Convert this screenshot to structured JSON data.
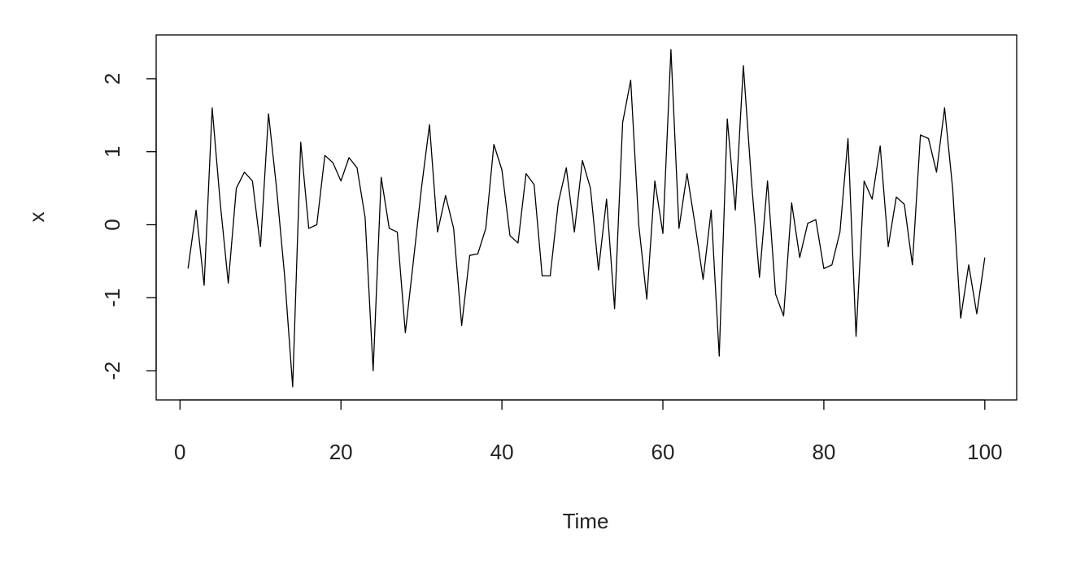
{
  "chart_data": {
    "type": "line",
    "x_label": "Time",
    "y_label": "x",
    "x": [
      1,
      2,
      3,
      4,
      5,
      6,
      7,
      8,
      9,
      10,
      11,
      12,
      13,
      14,
      15,
      16,
      17,
      18,
      19,
      20,
      21,
      22,
      23,
      24,
      25,
      26,
      27,
      28,
      29,
      30,
      31,
      32,
      33,
      34,
      35,
      36,
      37,
      38,
      39,
      40,
      41,
      42,
      43,
      44,
      45,
      46,
      47,
      48,
      49,
      50,
      51,
      52,
      53,
      54,
      55,
      56,
      57,
      58,
      59,
      60,
      61,
      62,
      63,
      64,
      65,
      66,
      67,
      68,
      69,
      70,
      71,
      72,
      73,
      74,
      75,
      76,
      77,
      78,
      79,
      80,
      81,
      82,
      83,
      84,
      85,
      86,
      87,
      88,
      89,
      90,
      91,
      92,
      93,
      94,
      95,
      96,
      97,
      98,
      99,
      100
    ],
    "series": [
      {
        "color": "#000000",
        "values": [
          -0.6,
          0.2,
          -0.83,
          1.6,
          0.3,
          -0.8,
          0.5,
          0.72,
          0.6,
          -0.3,
          1.52,
          0.5,
          -0.7,
          -2.22,
          1.13,
          -0.05,
          0.0,
          0.95,
          0.85,
          0.6,
          0.92,
          0.78,
          0.1,
          -2.0,
          0.65,
          -0.05,
          -0.1,
          -1.48,
          -0.5,
          0.5,
          1.37,
          -0.1,
          0.4,
          -0.05,
          -1.38,
          -0.42,
          -0.4,
          -0.05,
          1.1,
          0.75,
          -0.15,
          -0.25,
          0.7,
          0.55,
          -0.7,
          -0.7,
          0.3,
          0.78,
          -0.1,
          0.88,
          0.5,
          -0.62,
          0.35,
          -1.15,
          1.4,
          1.98,
          0.0,
          -1.02,
          0.6,
          -0.12,
          2.4,
          -0.05,
          0.7,
          0.0,
          -0.75,
          0.2,
          -1.8,
          1.45,
          0.2,
          2.18,
          0.6,
          -0.72,
          0.6,
          -0.95,
          -1.25,
          0.3,
          -0.45,
          0.02,
          0.07,
          -0.6,
          -0.55,
          -0.1,
          1.18,
          -1.53,
          0.6,
          0.35,
          1.08,
          -0.3,
          0.38,
          0.28,
          -0.55,
          1.23,
          1.18,
          0.72,
          1.6,
          0.5,
          -1.28,
          -0.55,
          -1.22,
          -0.45
        ]
      }
    ],
    "xlim": [
      -2.96,
      103.96
    ],
    "ylim": [
      -2.4,
      2.6
    ],
    "xticks": [
      0,
      20,
      40,
      60,
      80,
      100
    ],
    "yticks": [
      -2,
      -1,
      0,
      1,
      2
    ],
    "grid": false
  }
}
